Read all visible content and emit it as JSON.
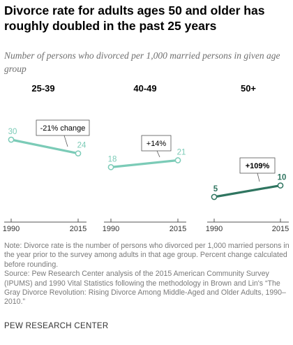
{
  "title": "Divorce rate for adults ages 50 and older has roughly doubled in the past 25 years",
  "subtitle": "Number of persons who divorced per 1,000 married persons in given age group",
  "chart_data": [
    {
      "type": "line",
      "title": "25-39",
      "x": [
        "1990",
        "2015"
      ],
      "values": [
        30,
        24
      ],
      "annotation": "-21% change",
      "color": "#7bcbb7"
    },
    {
      "type": "line",
      "title": "40-49",
      "x": [
        "1990",
        "2015"
      ],
      "values": [
        18,
        21
      ],
      "annotation": "+14%",
      "color": "#7bcbb7"
    },
    {
      "type": "line",
      "title": "50+",
      "x": [
        "1990",
        "2015"
      ],
      "values": [
        5,
        10
      ],
      "annotation": "+109%",
      "color": "#2f7560"
    }
  ],
  "note": "Note: Divorce rate is the number of persons who divorced per 1,000 married persons in the year prior to the survey among adults in that age group. Percent change calculated before rounding.",
  "source": "Source: Pew Research Center analysis of the 2015 American Community Survey (IPUMS) and 1990 Vital Statistics following the methodology in Brown and Lin's “The Gray Divorce Revolution: Rising Divorce Among Middle-Aged and Older Adults, 1990–2010.”",
  "footer": "PEW RESEARCH CENTER"
}
